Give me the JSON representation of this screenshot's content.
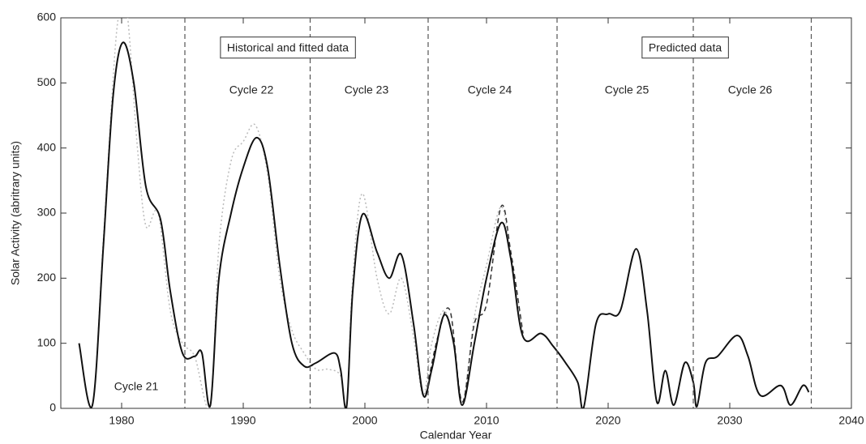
{
  "chart_data": {
    "type": "line",
    "xlabel": "Calendar Year",
    "ylabel": "Solar Activity (abritrary units)",
    "xlim": [
      1975,
      2040
    ],
    "xticks": [
      1980,
      1990,
      2000,
      2010,
      2020,
      2030,
      2040
    ],
    "ylim": [
      0,
      600
    ],
    "yticks": [
      0,
      100,
      200,
      300,
      400,
      500,
      600
    ],
    "vlines": [
      1985.2,
      1995.5,
      2005.2,
      2015.8,
      2027,
      2036.7
    ],
    "annotations": [
      "Historical and fitted data",
      "Predicted data",
      "Cycle 21",
      "Cycle 22",
      "Cycle 23",
      "Cycle 24",
      "Cycle 25",
      "Cycle 26"
    ],
    "series": [
      {
        "color": "#bbbbbb",
        "style": "dotted",
        "x": [
          1976.5,
          1977.6,
          1978.5,
          1979.5,
          1980,
          1980.5,
          1981.3,
          1982,
          1983,
          1984,
          1985,
          1986,
          1987.3,
          1988,
          1989,
          1990,
          1991,
          1992,
          1993,
          1994,
          1995,
          1996,
          1997,
          1998,
          1998.5,
          1999,
          1999.8,
          2001,
          2002,
          2003,
          2004,
          2004.8,
          2005.5,
          2006.5,
          2007.3,
          2008,
          2009,
          2010,
          2011.2,
          2012,
          2013
        ],
        "values": [
          100,
          5,
          260,
          560,
          610,
          600,
          400,
          280,
          300,
          150,
          100,
          80,
          5,
          250,
          380,
          410,
          435,
          360,
          200,
          120,
          85,
          60,
          60,
          50,
          3,
          200,
          330,
          200,
          145,
          200,
          110,
          20,
          100,
          150,
          100,
          5,
          140,
          220,
          310,
          230,
          110
        ]
      },
      {
        "color": "#333333",
        "style": "dashed",
        "x": [
          2005,
          2006,
          2007,
          2008,
          2009,
          2010,
          2011.2,
          2012,
          2013
        ],
        "values": [
          20,
          110,
          150,
          10,
          130,
          160,
          310,
          240,
          115
        ]
      },
      {
        "color": "#111111",
        "style": "solid",
        "x": [
          1976.5,
          1977.6,
          1978.5,
          1979.3,
          1980.1,
          1981,
          1982,
          1983.2,
          1984,
          1985,
          1986,
          1986.6,
          1987.3,
          1988,
          1989,
          1990,
          1991.1,
          1992,
          1993,
          1994,
          1995,
          1996,
          1997.5,
          1998,
          1998.5,
          1999,
          1999.8,
          2001,
          2002,
          2003,
          2004,
          2004.8,
          2005.5,
          2006.5,
          2007.3,
          2008,
          2009,
          2010,
          2011.2,
          2012,
          2013,
          2014.5,
          2015.5,
          2016.5,
          2017.5,
          2018,
          2019,
          2020,
          2021,
          2022.3,
          2023.2,
          2024,
          2024.7,
          2025.4,
          2026.3,
          2027,
          2027.3,
          2028,
          2029,
          2030.6,
          2031.5,
          2032.5,
          2034.2,
          2035,
          2036,
          2036.5
        ],
        "values": [
          100,
          5,
          250,
          480,
          562,
          500,
          340,
          290,
          180,
          85,
          80,
          85,
          5,
          200,
          300,
          370,
          416,
          370,
          220,
          100,
          65,
          70,
          85,
          60,
          3,
          180,
          298,
          240,
          200,
          236,
          130,
          20,
          60,
          143,
          100,
          5,
          100,
          200,
          285,
          230,
          110,
          115,
          95,
          70,
          40,
          2,
          130,
          145,
          150,
          245,
          150,
          10,
          58,
          5,
          70,
          40,
          3,
          70,
          80,
          112,
          80,
          20,
          35,
          5,
          35,
          25
        ]
      }
    ]
  }
}
